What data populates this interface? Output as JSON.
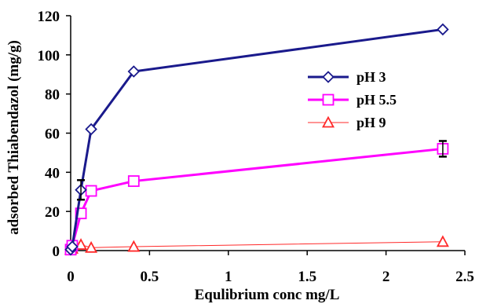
{
  "chart_data": {
    "type": "line",
    "title": "",
    "xlabel": "Equlibrium conc mg/L",
    "ylabel": "adsorbed Thiabendazol (mg/g)",
    "xlim": [
      0,
      2.5
    ],
    "ylim": [
      0,
      120
    ],
    "xticks": [
      0,
      0.5,
      1,
      1.5,
      2,
      2.5
    ],
    "xtick_labels": [
      "0",
      "0.5",
      "1",
      "1.5",
      "2",
      "2.5"
    ],
    "yticks": [
      0,
      20,
      40,
      60,
      80,
      100,
      120
    ],
    "ytick_labels": [
      "0",
      "20",
      "40",
      "60",
      "80",
      "100",
      "120"
    ],
    "grid": false,
    "legend_position": "right",
    "series": [
      {
        "name": "pH 3",
        "color": "#1a1a8c",
        "marker": "diamond",
        "x": [
          0.0,
          0.01,
          0.065,
          0.13,
          0.4,
          2.36
        ],
        "y": [
          0.5,
          2,
          31,
          62,
          91.5,
          113
        ]
      },
      {
        "name": "pH 5.5",
        "color": "#ff00ff",
        "marker": "square",
        "x": [
          0.0,
          0.01,
          0.065,
          0.13,
          0.4,
          2.36
        ],
        "y": [
          0.5,
          2.5,
          19,
          30.5,
          35.5,
          52
        ]
      },
      {
        "name": "pH 9",
        "color": "#ff2a2a",
        "marker": "triangle",
        "x": [
          0.0,
          0.01,
          0.065,
          0.13,
          0.4,
          2.36
        ],
        "y": [
          0.5,
          1,
          3,
          1.5,
          2,
          4.5
        ]
      }
    ],
    "error_bars": [
      {
        "series": "pH 5.5",
        "x": 2.36,
        "low": 48,
        "high": 56
      },
      {
        "series": "pH 3",
        "x": 0.065,
        "low": 26,
        "high": 36
      }
    ]
  }
}
